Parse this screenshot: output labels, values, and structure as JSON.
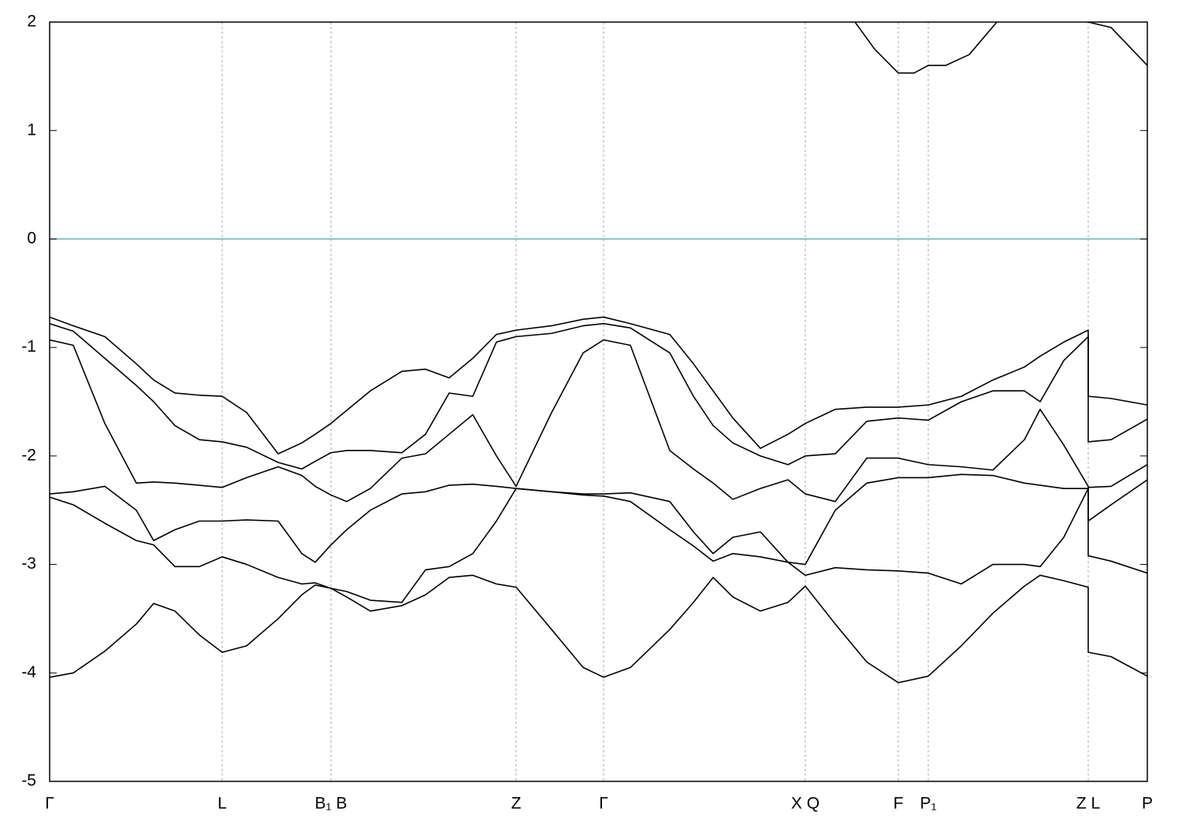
{
  "chart_data": {
    "type": "line",
    "x": [
      0,
      30,
      70,
      110,
      132,
      159,
      190,
      219,
      250,
      290,
      320,
      337,
      357,
      377,
      407,
      447,
      477,
      507,
      537,
      567,
      592,
      637,
      677,
      703,
      737,
      787,
      817,
      842,
      867,
      902,
      937,
      959,
      997,
      1037,
      1077,
      1115,
      1157,
      1197,
      1237,
      1257,
      1287,
      1318,
      1318,
      1347,
      1393
    ],
    "series": [
      {
        "color": "#000000",
        "values": [
          -4.04,
          -4.0,
          -3.8,
          -3.55,
          -3.36,
          -3.43,
          -3.65,
          -3.81,
          -3.75,
          -3.5,
          -3.28,
          -3.19,
          -3.22,
          -3.3,
          -3.43,
          -3.38,
          -3.28,
          -3.12,
          -3.1,
          -3.18,
          -3.21,
          -3.6,
          -3.95,
          -4.04,
          -3.95,
          -3.6,
          -3.35,
          -3.12,
          -3.3,
          -3.43,
          -3.35,
          -3.2,
          -3.55,
          -3.9,
          -4.09,
          -4.03,
          -3.75,
          -3.45,
          -3.2,
          -3.1,
          -3.15,
          -3.21,
          -3.81,
          -3.85,
          -4.03
        ]
      },
      {
        "color": "#000000",
        "values": [
          -2.38,
          -2.45,
          -2.62,
          -2.78,
          -2.82,
          -3.02,
          -3.02,
          -2.93,
          -3.0,
          -3.12,
          -3.18,
          -3.17,
          -3.22,
          -3.25,
          -3.33,
          -3.35,
          -3.05,
          -3.02,
          -2.9,
          -2.6,
          -2.3,
          -2.33,
          -2.36,
          -2.37,
          -2.42,
          -2.68,
          -2.83,
          -2.97,
          -2.9,
          -2.93,
          -2.98,
          -3.1,
          -3.03,
          -3.05,
          -3.06,
          -3.08,
          -3.18,
          -3.0,
          -3.0,
          -3.02,
          -2.75,
          -2.3,
          -2.92,
          -2.97,
          -3.08
        ]
      },
      {
        "color": "#000000",
        "values": [
          -2.35,
          -2.33,
          -2.28,
          -2.5,
          -2.78,
          -2.68,
          -2.6,
          -2.6,
          -2.59,
          -2.6,
          -2.9,
          -2.98,
          -2.82,
          -2.68,
          -2.5,
          -2.35,
          -2.33,
          -2.27,
          -2.26,
          -2.28,
          -2.3,
          -2.33,
          -2.35,
          -2.35,
          -2.34,
          -2.42,
          -2.7,
          -2.9,
          -2.75,
          -2.7,
          -2.98,
          -3.0,
          -2.5,
          -2.25,
          -2.2,
          -2.2,
          -2.17,
          -2.18,
          -2.25,
          -2.27,
          -2.3,
          -2.3,
          -2.6,
          -2.45,
          -2.22
        ]
      },
      {
        "color": "#000000",
        "values": [
          -0.93,
          -0.98,
          -1.7,
          -2.25,
          -2.24,
          -2.25,
          -2.27,
          -2.29,
          -2.2,
          -2.1,
          -2.18,
          -2.28,
          -2.36,
          -2.42,
          -2.3,
          -2.02,
          -1.98,
          -1.8,
          -1.62,
          -2.0,
          -2.28,
          -1.6,
          -1.05,
          -0.93,
          -0.98,
          -1.95,
          -2.12,
          -2.25,
          -2.4,
          -2.3,
          -2.22,
          -2.35,
          -2.42,
          -2.02,
          -2.02,
          -2.08,
          -2.1,
          -2.13,
          -1.85,
          -1.57,
          -1.9,
          -2.28,
          -2.29,
          -2.28,
          -2.08
        ]
      },
      {
        "color": "#000000",
        "values": [
          -0.78,
          -0.85,
          -1.1,
          -1.35,
          -1.5,
          -1.72,
          -1.85,
          -1.87,
          -1.92,
          -2.06,
          -2.12,
          -2.05,
          -1.97,
          -1.95,
          -1.95,
          -1.97,
          -1.8,
          -1.42,
          -1.45,
          -0.95,
          -0.9,
          -0.87,
          -0.8,
          -0.78,
          -0.82,
          -1.05,
          -1.45,
          -1.72,
          -1.88,
          -2.0,
          -2.08,
          -2.0,
          -1.98,
          -1.68,
          -1.65,
          -1.67,
          -1.5,
          -1.4,
          -1.4,
          -1.5,
          -1.12,
          -0.9,
          -1.87,
          -1.85,
          -1.66
        ]
      },
      {
        "color": "#000000",
        "values": [
          -0.72,
          -0.8,
          -0.9,
          -1.15,
          -1.3,
          -1.42,
          -1.44,
          -1.45,
          -1.6,
          -1.98,
          -1.88,
          -1.8,
          -1.7,
          -1.58,
          -1.4,
          -1.22,
          -1.2,
          -1.28,
          -1.1,
          -0.88,
          -0.84,
          -0.8,
          -0.74,
          -0.72,
          -0.78,
          -0.88,
          -1.15,
          -1.4,
          -1.65,
          -1.93,
          -1.8,
          -1.7,
          -1.57,
          -1.55,
          -1.55,
          -1.53,
          -1.45,
          -1.3,
          -1.18,
          -1.08,
          -0.95,
          -0.84,
          -1.45,
          -1.47,
          -1.53
        ]
      },
      {
        "color": "#000000",
        "x": [
          1022,
          1047,
          1077,
          1097,
          1115,
          1137,
          1167,
          1202,
          1260,
          1318,
          1347,
          1393
        ],
        "values": [
          2,
          1.75,
          1.53,
          1.53,
          1.6,
          1.6,
          1.7,
          2,
          null,
          2,
          1.95,
          1.6
        ]
      }
    ],
    "xlim": [
      0,
      1393
    ],
    "xticks": [
      {
        "value": 0,
        "label": "Γ"
      },
      {
        "value": 219,
        "label": "L"
      },
      {
        "value": 357,
        "label": "B₁ B"
      },
      {
        "value": 592,
        "label": "Z"
      },
      {
        "value": 703,
        "label": "Γ"
      },
      {
        "value": 959,
        "label": "X Q"
      },
      {
        "value": 1077,
        "label": "F"
      },
      {
        "value": 1115,
        "label": "P₁"
      },
      {
        "value": 1318,
        "label": "Z L"
      },
      {
        "value": 1393,
        "label": "P"
      }
    ],
    "ylim": [
      -5,
      2
    ],
    "yticks": [
      2,
      1,
      0,
      -1,
      -2,
      -3,
      -4,
      -5
    ],
    "grid": true,
    "fermi_level": 0,
    "fermi_color": "#5ab4c8"
  }
}
